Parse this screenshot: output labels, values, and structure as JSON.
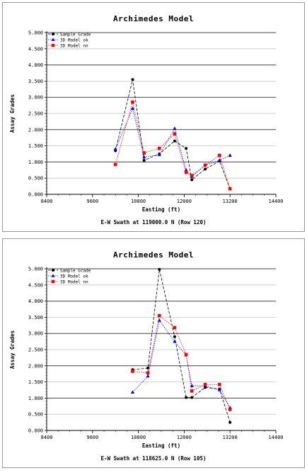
{
  "chart_data": [
    {
      "type": "line",
      "title": "Archimedes Model",
      "xlabel": "Easting (ft)",
      "ylabel": "Assay Grades",
      "footer": "E-W Swath at 119000.0 N (Row 120)",
      "xlim": [
        8400,
        14400
      ],
      "ylim": [
        0,
        5.0
      ],
      "x_ticks": [
        "8400",
        "9600",
        "10800",
        "12000",
        "13200",
        "14400"
      ],
      "y_ticks": [
        "0.000",
        "0.500",
        "1.000",
        "1.500",
        "2.000",
        "2.500",
        "3.000",
        "3.500",
        "4.000",
        "4.500",
        "5.000"
      ],
      "grid": true,
      "legend_position": "top-left",
      "series": [
        {
          "name": "Sample Grade",
          "color": "#000000",
          "marker": "circle",
          "x": [
            10200,
            10650,
            10950,
            11350,
            11750,
            12050,
            12200,
            12550,
            12925,
            13200
          ],
          "y": [
            1.35,
            3.55,
            1.05,
            1.25,
            1.65,
            1.42,
            0.45,
            0.78,
            1.03,
            0.17
          ]
        },
        {
          "name": "3D Model ok",
          "color": "#0000ff",
          "marker": "triangle",
          "x": [
            10200,
            10650,
            10950,
            11350,
            11750,
            12050,
            12200,
            12550,
            12925,
            13200
          ],
          "y": [
            1.4,
            2.65,
            1.15,
            1.22,
            2.03,
            0.75,
            0.55,
            0.9,
            1.05,
            1.2
          ]
        },
        {
          "name": "3D Model nn",
          "color": "#ff0000",
          "marker": "square",
          "x": [
            10200,
            10650,
            10950,
            11350,
            11750,
            12050,
            12200,
            12550,
            12925,
            13200
          ],
          "y": [
            0.92,
            2.85,
            1.28,
            1.42,
            1.87,
            0.68,
            0.58,
            0.9,
            1.2,
            0.17
          ]
        }
      ]
    },
    {
      "type": "line",
      "title": "Archimedes Model",
      "xlabel": "Easting (ft)",
      "ylabel": "Assay Grades",
      "footer": "E-W Swath at 118625.0 N (Row 105)",
      "xlim": [
        8400,
        14400
      ],
      "ylim": [
        0,
        5.0
      ],
      "x_ticks": [
        "8400",
        "9600",
        "10800",
        "12000",
        "13200",
        "14400"
      ],
      "y_ticks": [
        "0.000",
        "0.500",
        "1.000",
        "1.500",
        "2.000",
        "2.500",
        "3.000",
        "3.500",
        "4.000",
        "4.500",
        "5.000"
      ],
      "grid": true,
      "legend_position": "top-left",
      "series": [
        {
          "name": "Sample Grade",
          "color": "#000000",
          "marker": "circle",
          "x": [
            10650,
            11050,
            11350,
            11750,
            12050,
            12200,
            12550,
            12925,
            13200
          ],
          "y": [
            1.88,
            1.93,
            4.98,
            2.9,
            1.02,
            1.02,
            1.33,
            1.28,
            0.25
          ]
        },
        {
          "name": "3D Model ok",
          "color": "#0000ff",
          "marker": "triangle",
          "x": [
            10650,
            11050,
            11350,
            11750,
            12050,
            12200,
            12550,
            12925,
            13200
          ],
          "y": [
            1.18,
            1.68,
            3.4,
            2.75,
            2.33,
            1.38,
            1.38,
            1.25,
            0.7
          ]
        },
        {
          "name": "3D Model nn",
          "color": "#ff0000",
          "marker": "square",
          "x": [
            10650,
            11050,
            11350,
            11750,
            12050,
            12200,
            12550,
            12925,
            13200
          ],
          "y": [
            1.83,
            1.78,
            3.55,
            3.18,
            2.35,
            1.22,
            1.42,
            1.42,
            0.65
          ]
        }
      ]
    }
  ]
}
